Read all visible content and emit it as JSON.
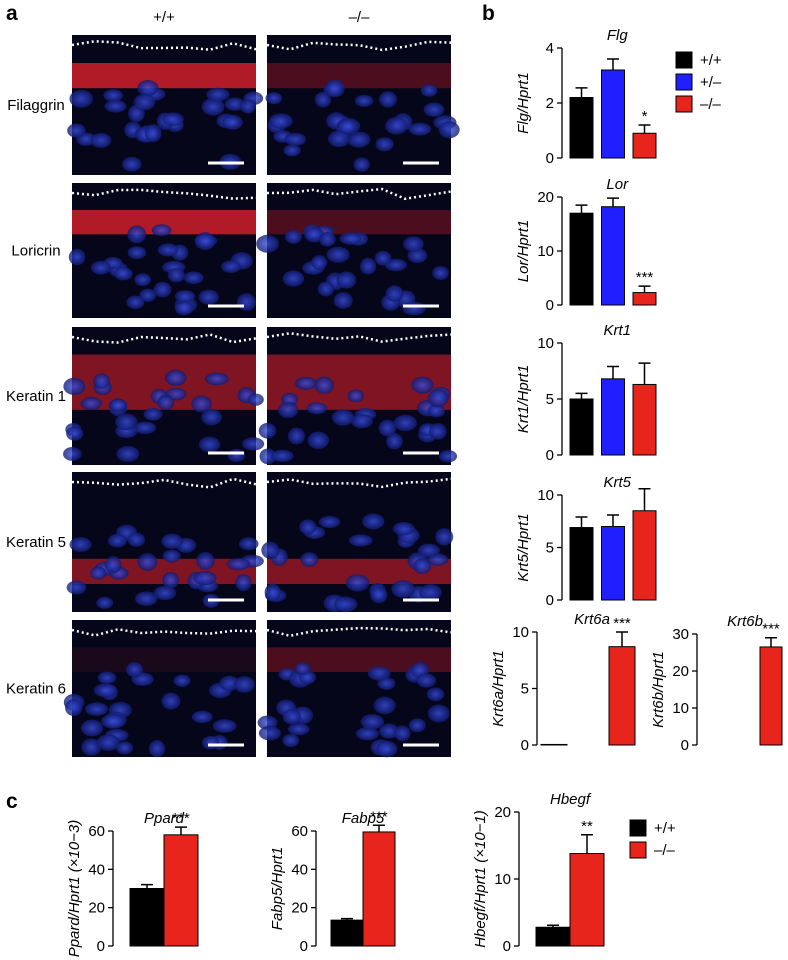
{
  "panel_labels": {
    "a": "a",
    "b": "b",
    "c": "c"
  },
  "genotype_headers": [
    {
      "label": "+/+",
      "color": "#000000"
    },
    {
      "label": "–/–",
      "color": "#e8251c"
    }
  ],
  "rows": [
    "Filaggrin",
    "Loricrin",
    "Keratin 1",
    "Keratin 5",
    "Keratin 6"
  ],
  "legends": [
    {
      "entries": [
        {
          "label": "+/+",
          "color": "#000000"
        },
        {
          "label": "+/–",
          "color": "#1f1fff"
        },
        {
          "label": "–/–",
          "color": "#e8251c"
        }
      ]
    },
    {
      "entries": [
        {
          "label": "+/+",
          "color": "#000000"
        },
        {
          "label": "–/–",
          "color": "#e8251c"
        }
      ]
    }
  ],
  "chart_data": [
    {
      "type": "bar",
      "title": "Flg",
      "ylabel": "Flg/Hprt1",
      "values": [
        2.2,
        3.2,
        0.9
      ],
      "errors": [
        0.35,
        0.4,
        0.3
      ],
      "colors": [
        "#000000",
        "#1f1fff",
        "#e8251c"
      ],
      "annotations": [
        null,
        null,
        "*"
      ],
      "ylim": [
        0,
        4
      ],
      "yticks": [
        0,
        2,
        4
      ]
    },
    {
      "type": "bar",
      "title": "Lor",
      "ylabel": "Lor/Hprt1",
      "values": [
        17,
        18.2,
        2.3
      ],
      "errors": [
        1.5,
        1.6,
        1.2
      ],
      "colors": [
        "#000000",
        "#1f1fff",
        "#e8251c"
      ],
      "annotations": [
        null,
        null,
        "***"
      ],
      "ylim": [
        0,
        20
      ],
      "yticks": [
        0,
        10,
        20
      ]
    },
    {
      "type": "bar",
      "title": "Krt1",
      "ylabel": "Krt1/Hprt1",
      "values": [
        5,
        6.8,
        6.3
      ],
      "errors": [
        0.5,
        1.1,
        1.9
      ],
      "colors": [
        "#000000",
        "#1f1fff",
        "#e8251c"
      ],
      "annotations": [
        null,
        null,
        null
      ],
      "ylim": [
        0,
        10
      ],
      "yticks": [
        0,
        5,
        10
      ]
    },
    {
      "type": "bar",
      "title": "Krt5",
      "ylabel": "Krt5/Hprt1",
      "values": [
        6.9,
        7,
        8.5
      ],
      "errors": [
        1,
        1.1,
        2.1
      ],
      "colors": [
        "#000000",
        "#1f1fff",
        "#e8251c"
      ],
      "annotations": [
        null,
        null,
        null
      ],
      "ylim": [
        0,
        10
      ],
      "yticks": [
        0,
        5,
        10
      ]
    },
    {
      "type": "bar",
      "title": "Krt6a",
      "ylabel": "Krt6a/Hprt1",
      "values": [
        0.05,
        0,
        8.7
      ],
      "errors": [
        0,
        0,
        1.3
      ],
      "colors": [
        "#000000",
        "#1f1fff",
        "#e8251c"
      ],
      "annotations": [
        null,
        null,
        "***"
      ],
      "ylim": [
        0,
        10
      ],
      "yticks": [
        0,
        5,
        10
      ]
    },
    {
      "type": "bar",
      "title": "Krt6b",
      "ylabel": "Krt6b/Hprt1",
      "values": [
        0,
        0,
        26.5
      ],
      "errors": [
        0,
        0,
        2.5
      ],
      "colors": [
        "#000000",
        "#1f1fff",
        "#e8251c"
      ],
      "annotations": [
        null,
        null,
        "***"
      ],
      "ylim": [
        0,
        30
      ],
      "yticks": [
        0,
        10,
        20,
        30
      ]
    },
    {
      "type": "bar",
      "title": "Ppard",
      "ylabel": "Ppard/Hprt1 (×10−3)",
      "values": [
        30,
        58
      ],
      "errors": [
        2,
        4
      ],
      "colors": [
        "#000000",
        "#e8251c"
      ],
      "annotations": [
        null,
        "***"
      ],
      "ylim": [
        0,
        60
      ],
      "yticks": [
        0,
        20,
        40,
        60
      ]
    },
    {
      "type": "bar",
      "title": "Fabp5",
      "ylabel": "Fabp5/Hprt1",
      "values": [
        13.5,
        59.5
      ],
      "errors": [
        0.8,
        3.5
      ],
      "colors": [
        "#000000",
        "#e8251c"
      ],
      "annotations": [
        null,
        "***"
      ],
      "ylim": [
        0,
        60
      ],
      "yticks": [
        0,
        20,
        40,
        60
      ]
    },
    {
      "type": "bar",
      "title": "Hbegf",
      "ylabel": "Hbegf/Hprt1 (×10−1)",
      "values": [
        2.8,
        13.8
      ],
      "errors": [
        0.3,
        2.8
      ],
      "colors": [
        "#000000",
        "#e8251c"
      ],
      "annotations": [
        null,
        "**"
      ],
      "ylim": [
        0,
        20
      ],
      "yticks": [
        0,
        10,
        20
      ]
    }
  ]
}
